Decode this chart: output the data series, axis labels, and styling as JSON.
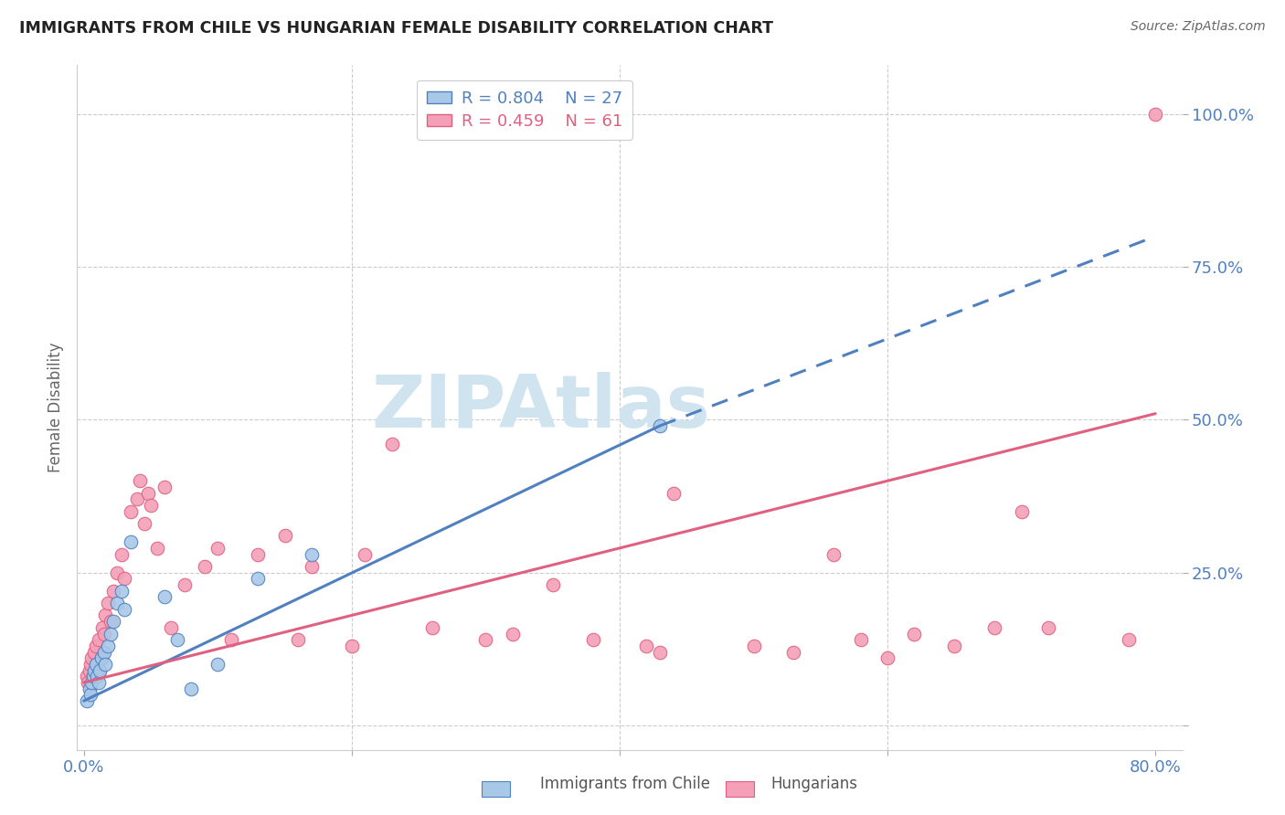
{
  "title": "IMMIGRANTS FROM CHILE VS HUNGARIAN FEMALE DISABILITY CORRELATION CHART",
  "source": "Source: ZipAtlas.com",
  "ylabel": "Female Disability",
  "xlim": [
    -0.005,
    0.82
  ],
  "ylim": [
    -0.04,
    1.08
  ],
  "yticks": [
    0.0,
    0.25,
    0.5,
    0.75,
    1.0
  ],
  "ytick_labels": [
    "",
    "25.0%",
    "50.0%",
    "75.0%",
    "100.0%"
  ],
  "xticks": [
    0.0,
    0.2,
    0.4,
    0.6,
    0.8
  ],
  "xtick_labels": [
    "0.0%",
    "",
    "",
    "",
    "80.0%"
  ],
  "legend_r1": "0.804",
  "legend_n1": "27",
  "legend_r2": "0.459",
  "legend_n2": "61",
  "blue_color": "#a8c8e8",
  "pink_color": "#f4a0b8",
  "blue_line_color": "#5080c0",
  "pink_line_color": "#e06080",
  "watermark": "ZIPAtlas",
  "watermark_color": "#d0e4f0",
  "blue_scatter_x": [
    0.002,
    0.004,
    0.005,
    0.006,
    0.007,
    0.008,
    0.009,
    0.01,
    0.011,
    0.012,
    0.013,
    0.015,
    0.016,
    0.018,
    0.02,
    0.022,
    0.025,
    0.028,
    0.03,
    0.035,
    0.06,
    0.07,
    0.08,
    0.1,
    0.13,
    0.17,
    0.43
  ],
  "blue_scatter_y": [
    0.04,
    0.06,
    0.05,
    0.07,
    0.08,
    0.09,
    0.1,
    0.08,
    0.07,
    0.09,
    0.11,
    0.12,
    0.1,
    0.13,
    0.15,
    0.17,
    0.2,
    0.22,
    0.19,
    0.3,
    0.21,
    0.14,
    0.06,
    0.1,
    0.24,
    0.28,
    0.49
  ],
  "pink_scatter_x": [
    0.002,
    0.003,
    0.004,
    0.005,
    0.006,
    0.007,
    0.008,
    0.009,
    0.01,
    0.011,
    0.012,
    0.013,
    0.014,
    0.015,
    0.016,
    0.018,
    0.02,
    0.022,
    0.025,
    0.028,
    0.03,
    0.035,
    0.04,
    0.042,
    0.045,
    0.048,
    0.05,
    0.055,
    0.06,
    0.065,
    0.075,
    0.09,
    0.1,
    0.11,
    0.13,
    0.15,
    0.16,
    0.17,
    0.2,
    0.21,
    0.23,
    0.26,
    0.3,
    0.32,
    0.35,
    0.38,
    0.42,
    0.43,
    0.44,
    0.5,
    0.53,
    0.56,
    0.58,
    0.6,
    0.62,
    0.65,
    0.68,
    0.7,
    0.72,
    0.78,
    0.8
  ],
  "pink_scatter_y": [
    0.08,
    0.07,
    0.09,
    0.1,
    0.11,
    0.08,
    0.12,
    0.13,
    0.1,
    0.14,
    0.09,
    0.11,
    0.16,
    0.15,
    0.18,
    0.2,
    0.17,
    0.22,
    0.25,
    0.28,
    0.24,
    0.35,
    0.37,
    0.4,
    0.33,
    0.38,
    0.36,
    0.29,
    0.39,
    0.16,
    0.23,
    0.26,
    0.29,
    0.14,
    0.28,
    0.31,
    0.14,
    0.26,
    0.13,
    0.28,
    0.46,
    0.16,
    0.14,
    0.15,
    0.23,
    0.14,
    0.13,
    0.12,
    0.38,
    0.13,
    0.12,
    0.28,
    0.14,
    0.11,
    0.15,
    0.13,
    0.16,
    0.35,
    0.16,
    0.14,
    1.0
  ],
  "blue_line_x_start": 0.0,
  "blue_line_x_solid_end": 0.43,
  "blue_line_x_dash_end": 0.8,
  "blue_line_y_start": 0.04,
  "blue_line_y_solid_end": 0.49,
  "blue_line_y_dash_end": 0.8,
  "pink_line_x_start": 0.0,
  "pink_line_x_end": 0.8,
  "pink_line_y_start": 0.07,
  "pink_line_y_end": 0.51
}
